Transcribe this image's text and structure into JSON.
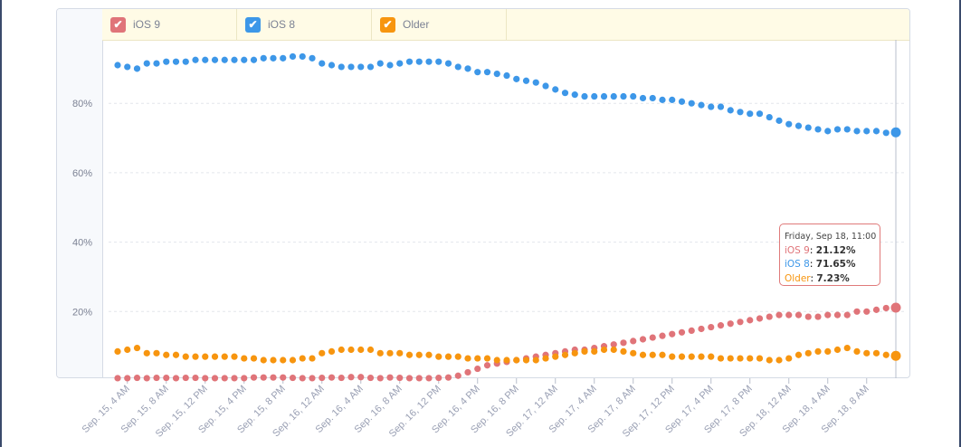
{
  "chart_data": {
    "type": "scatter",
    "ylim": [
      0,
      100
    ],
    "yticks": [
      "20%",
      "40%",
      "60%",
      "80%"
    ],
    "ytick_values": [
      20,
      40,
      60,
      80
    ],
    "grid": true,
    "legend_position": "top",
    "xtick_labels": [
      "Sep. 15, 4 AM",
      "Sep. 15, 8 AM",
      "Sep. 15, 12 PM",
      "Sep. 15, 4 PM",
      "Sep. 15, 8 PM",
      "Sep. 16, 12 AM",
      "Sep. 16, 4 AM",
      "Sep. 16, 8 AM",
      "Sep. 16, 12 PM",
      "Sep. 16, 4 PM",
      "Sep. 16, 8 PM",
      "Sep. 17, 12 AM",
      "Sep. 17, 4 AM",
      "Sep. 17, 8 AM",
      "Sep. 17, 12 PM",
      "Sep. 17, 4 PM",
      "Sep. 17, 8 PM",
      "Sep. 18, 12 AM",
      "Sep. 18, 4 AM",
      "Sep. 18, 8 AM"
    ],
    "x": [
      "Sep. 15, 3 AM",
      "Sep. 15, 4 AM",
      "Sep. 15, 5 AM",
      "Sep. 15, 6 AM",
      "Sep. 15, 7 AM",
      "Sep. 15, 8 AM",
      "Sep. 15, 9 AM",
      "Sep. 15, 10 AM",
      "Sep. 15, 11 AM",
      "Sep. 15, 12 PM",
      "Sep. 15, 1 PM",
      "Sep. 15, 2 PM",
      "Sep. 15, 3 PM",
      "Sep. 15, 4 PM",
      "Sep. 15, 5 PM",
      "Sep. 15, 6 PM",
      "Sep. 15, 7 PM",
      "Sep. 15, 8 PM",
      "Sep. 15, 9 PM",
      "Sep. 15, 10 PM",
      "Sep. 15, 11 PM",
      "Sep. 16, 12 AM",
      "Sep. 16, 1 AM",
      "Sep. 16, 2 AM",
      "Sep. 16, 3 AM",
      "Sep. 16, 4 AM",
      "Sep. 16, 5 AM",
      "Sep. 16, 6 AM",
      "Sep. 16, 7 AM",
      "Sep. 16, 8 AM",
      "Sep. 16, 9 AM",
      "Sep. 16, 10 AM",
      "Sep. 16, 11 AM",
      "Sep. 16, 12 PM",
      "Sep. 16, 1 PM",
      "Sep. 16, 2 PM",
      "Sep. 16, 3 PM",
      "Sep. 16, 4 PM",
      "Sep. 16, 5 PM",
      "Sep. 16, 6 PM",
      "Sep. 16, 7 PM",
      "Sep. 16, 8 PM",
      "Sep. 16, 9 PM",
      "Sep. 16, 10 PM",
      "Sep. 16, 11 PM",
      "Sep. 17, 12 AM",
      "Sep. 17, 1 AM",
      "Sep. 17, 2 AM",
      "Sep. 17, 3 AM",
      "Sep. 17, 4 AM",
      "Sep. 17, 5 AM",
      "Sep. 17, 6 AM",
      "Sep. 17, 7 AM",
      "Sep. 17, 8 AM",
      "Sep. 17, 9 AM",
      "Sep. 17, 10 AM",
      "Sep. 17, 11 AM",
      "Sep. 17, 12 PM",
      "Sep. 17, 1 PM",
      "Sep. 17, 2 PM",
      "Sep. 17, 3 PM",
      "Sep. 17, 4 PM",
      "Sep. 17, 5 PM",
      "Sep. 17, 6 PM",
      "Sep. 17, 7 PM",
      "Sep. 17, 8 PM",
      "Sep. 17, 9 PM",
      "Sep. 17, 10 PM",
      "Sep. 17, 11 PM",
      "Sep. 18, 12 AM",
      "Sep. 18, 1 AM",
      "Sep. 18, 2 AM",
      "Sep. 18, 3 AM",
      "Sep. 18, 4 AM",
      "Sep. 18, 5 AM",
      "Sep. 18, 6 AM",
      "Sep. 18, 7 AM",
      "Sep. 18, 8 AM",
      "Sep. 18, 9 AM",
      "Sep. 18, 10 AM",
      "Sep. 18, 11 AM"
    ],
    "series": [
      {
        "name": "iOS 9",
        "color": "#e07479",
        "values": [
          0.8,
          0.8,
          0.9,
          0.8,
          0.9,
          0.9,
          0.8,
          0.9,
          0.9,
          0.8,
          0.8,
          0.8,
          0.8,
          0.8,
          1,
          1,
          1,
          1,
          0.9,
          0.8,
          0.8,
          0.9,
          1,
          0.9,
          1.1,
          1.1,
          0.9,
          0.8,
          1,
          0.9,
          0.8,
          0.8,
          0.8,
          0.9,
          1,
          1.5,
          2.5,
          3.5,
          4.5,
          5,
          5.5,
          6,
          6.5,
          7,
          7.5,
          8,
          8.5,
          9,
          9,
          9.5,
          10,
          10.5,
          11,
          11.5,
          12,
          12.5,
          13,
          13.5,
          14,
          14.5,
          15,
          15.5,
          16,
          16.5,
          17,
          17.5,
          18,
          18.5,
          19,
          19,
          19,
          18.5,
          18.5,
          19,
          19,
          19,
          20,
          20,
          20.5,
          21,
          21.12
        ]
      },
      {
        "name": "iOS 8",
        "color": "#3d97e8",
        "values": [
          91,
          90.5,
          90,
          91.5,
          91.5,
          92,
          92,
          92,
          92.5,
          92.5,
          92.5,
          92.5,
          92.5,
          92.5,
          92.5,
          93,
          93,
          93,
          93.5,
          93.5,
          93,
          91.5,
          91,
          90.5,
          90.5,
          90.5,
          90.5,
          91.5,
          91,
          91.5,
          92,
          92,
          92,
          92,
          91.5,
          90.5,
          90,
          89,
          89,
          88.5,
          88,
          87,
          86.5,
          86,
          85,
          84,
          83,
          82.5,
          82,
          82,
          82,
          82,
          82,
          82,
          81.5,
          81.5,
          81,
          81,
          80.5,
          80,
          79.5,
          79,
          79,
          78,
          77.5,
          77,
          77,
          76,
          75,
          74,
          73.5,
          73,
          72.5,
          72,
          72.5,
          72.5,
          72,
          72,
          72,
          71.5,
          71.65
        ]
      },
      {
        "name": "Older",
        "color": "#f7950f",
        "values": [
          8.5,
          9,
          9.5,
          8,
          8,
          7.5,
          7.5,
          7,
          7,
          7,
          7,
          7,
          7,
          6.5,
          6.5,
          6,
          6,
          6,
          6,
          6.5,
          6.5,
          8,
          8.5,
          9,
          9,
          9,
          9,
          8,
          8,
          8,
          7.5,
          7.5,
          7.5,
          7,
          7,
          7,
          6.5,
          6.5,
          6.5,
          6,
          6,
          6,
          6,
          6,
          6.5,
          7,
          7.5,
          8,
          8.5,
          8.5,
          9,
          9,
          8.5,
          8,
          7.5,
          7.5,
          7.5,
          7,
          7,
          7,
          7,
          7,
          6.5,
          6.5,
          6.5,
          6.5,
          6.5,
          6,
          6,
          6.5,
          7.5,
          8,
          8.5,
          8.5,
          9,
          9.5,
          8.5,
          8,
          8,
          7.5,
          7.23
        ]
      }
    ],
    "tooltip": {
      "title": "Friday, Sep 18, 11:00",
      "rows": [
        {
          "label": "iOS 9",
          "value": "21.12%"
        },
        {
          "label": "iOS 8",
          "value": "71.65%"
        },
        {
          "label": "Older",
          "value": "7.23%"
        }
      ]
    }
  },
  "legend": {
    "check_glyph": "✔",
    "items": [
      "iOS 9",
      "iOS 8",
      "Older"
    ]
  }
}
